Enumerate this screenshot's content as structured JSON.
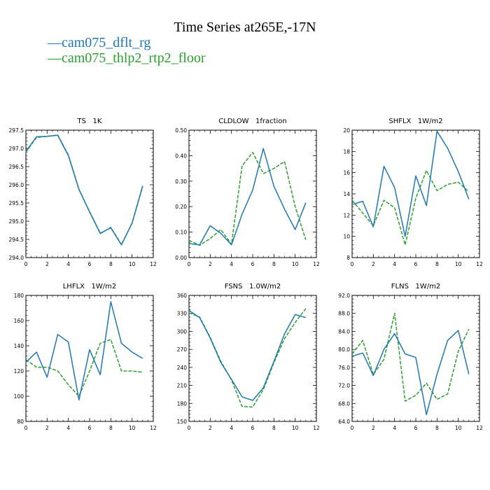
{
  "title": "Time Series at265E,-17N",
  "legend": {
    "prefix": "—",
    "entries": [
      {
        "name": "cam075_dflt_rg",
        "color": "#1f77b4",
        "dash": "solid"
      },
      {
        "name": "cam075_thlp2_rtp2_floor",
        "color": "#2ca02c",
        "dash": "dashed"
      }
    ]
  },
  "chart_data": [
    {
      "type": "line",
      "title": "TS   1K",
      "x": [
        0,
        1,
        2,
        3,
        4,
        5,
        6,
        7,
        8,
        9,
        10,
        11
      ],
      "xlim": [
        0,
        12
      ],
      "xticks": [
        "0",
        "2",
        "4",
        "6",
        "8",
        "10",
        "12"
      ],
      "ylim": [
        294.0,
        297.5
      ],
      "yticks": [
        "294.0",
        "294.5",
        "295.0",
        "295.5",
        "296.0",
        "296.5",
        "297.0",
        "297.5"
      ],
      "series": [
        {
          "name": "cam075_dflt_rg",
          "values": [
            296.92,
            297.32,
            297.33,
            297.36,
            296.8,
            295.87,
            295.26,
            294.67,
            294.82,
            294.35,
            294.95,
            295.97
          ]
        },
        {
          "name": "cam075_thlp2_rtp2_floor",
          "values": [
            296.9,
            297.3,
            297.33,
            297.37,
            296.82,
            295.88,
            295.25,
            294.66,
            294.83,
            294.36,
            294.94,
            295.95
          ]
        }
      ]
    },
    {
      "type": "line",
      "title": "CLDLOW   1fraction",
      "x": [
        0,
        1,
        2,
        3,
        4,
        5,
        6,
        7,
        8,
        9,
        10,
        11
      ],
      "xlim": [
        0,
        12
      ],
      "xticks": [
        "0",
        "2",
        "4",
        "6",
        "8",
        "10",
        "12"
      ],
      "ylim": [
        0.0,
        0.5
      ],
      "yticks": [
        "0.00",
        "0.10",
        "0.20",
        "0.30",
        "0.40",
        "0.50"
      ],
      "series": [
        {
          "name": "cam075_dflt_rg",
          "values": [
            0.055,
            0.05,
            0.125,
            0.095,
            0.05,
            0.17,
            0.265,
            0.428,
            0.28,
            0.19,
            0.11,
            0.215
          ]
        },
        {
          "name": "cam075_thlp2_rtp2_floor",
          "values": [
            0.068,
            0.048,
            0.075,
            0.11,
            0.052,
            0.36,
            0.413,
            0.33,
            0.35,
            0.377,
            0.2,
            0.07
          ]
        }
      ]
    },
    {
      "type": "line",
      "title": "SHFLX   1W/m2",
      "x": [
        0,
        1,
        2,
        3,
        4,
        5,
        6,
        7,
        8,
        9,
        10,
        11
      ],
      "xlim": [
        0,
        12
      ],
      "xticks": [
        "0",
        "2",
        "4",
        "6",
        "8",
        "10",
        "12"
      ],
      "ylim": [
        8,
        20
      ],
      "yticks": [
        "8",
        "10",
        "12",
        "14",
        "16",
        "18",
        "20"
      ],
      "series": [
        {
          "name": "cam075_dflt_rg",
          "values": [
            13.0,
            13.3,
            10.9,
            16.6,
            14.6,
            10.0,
            15.7,
            12.9,
            19.9,
            18.3,
            16.1,
            13.5
          ]
        },
        {
          "name": "cam075_thlp2_rtp2_floor",
          "values": [
            13.4,
            12.2,
            11.0,
            13.4,
            12.7,
            9.2,
            13.6,
            16.2,
            14.3,
            14.9,
            15.1,
            14.2
          ]
        }
      ]
    },
    {
      "type": "line",
      "title": "LHFLX   1W/m2",
      "x": [
        0,
        1,
        2,
        3,
        4,
        5,
        6,
        7,
        8,
        9,
        10,
        11
      ],
      "xlim": [
        0,
        12
      ],
      "xticks": [
        "0",
        "2",
        "4",
        "6",
        "8",
        "10",
        "12"
      ],
      "ylim": [
        80,
        180
      ],
      "yticks": [
        "80",
        "100",
        "120",
        "140",
        "160",
        "180"
      ],
      "series": [
        {
          "name": "cam075_dflt_rg",
          "values": [
            127,
            135,
            115,
            149,
            143,
            97,
            137,
            117,
            175,
            142,
            135,
            130
          ]
        },
        {
          "name": "cam075_thlp2_rtp2_floor",
          "values": [
            129,
            123,
            123,
            120,
            109,
            100,
            120,
            142,
            145,
            120,
            120,
            119
          ]
        }
      ]
    },
    {
      "type": "line",
      "title": "FSNS   1.0W/m2",
      "x": [
        0,
        1,
        2,
        3,
        4,
        5,
        6,
        7,
        8,
        9,
        10,
        11
      ],
      "xlim": [
        0,
        12
      ],
      "xticks": [
        "0",
        "2",
        "4",
        "6",
        "8",
        "10",
        "12"
      ],
      "ylim": [
        150,
        360
      ],
      "yticks": [
        "150",
        "180",
        "210",
        "240",
        "270",
        "300",
        "330",
        "360"
      ],
      "series": [
        {
          "name": "cam075_dflt_rg",
          "values": [
            335,
            323,
            289,
            248,
            220,
            191,
            185,
            206,
            250,
            296,
            328,
            323
          ]
        },
        {
          "name": "cam075_thlp2_rtp2_floor",
          "values": [
            331,
            324,
            290,
            250,
            219,
            175,
            174,
            203,
            248,
            288,
            315,
            338
          ]
        }
      ]
    },
    {
      "type": "line",
      "title": "FLNS   1W/m2",
      "x": [
        0,
        1,
        2,
        3,
        4,
        5,
        6,
        7,
        8,
        9,
        10,
        11
      ],
      "xlim": [
        0,
        12
      ],
      "xticks": [
        "0",
        "2",
        "4",
        "6",
        "8",
        "10",
        "12"
      ],
      "ylim": [
        64,
        92
      ],
      "yticks": [
        "64.0",
        "68.0",
        "72.0",
        "76.0",
        "80.0",
        "84.0",
        "88.0",
        "92.0"
      ],
      "series": [
        {
          "name": "cam075_dflt_rg",
          "values": [
            78.5,
            79.2,
            74.2,
            80.0,
            83.5,
            79.0,
            78.2,
            65.5,
            74.5,
            82.0,
            84.2,
            74.5
          ]
        },
        {
          "name": "cam075_thlp2_rtp2_floor",
          "values": [
            79.0,
            82.0,
            74.4,
            77.8,
            88.0,
            68.5,
            69.8,
            72.5,
            68.9,
            70.1,
            79.6,
            84.5
          ]
        }
      ]
    }
  ]
}
